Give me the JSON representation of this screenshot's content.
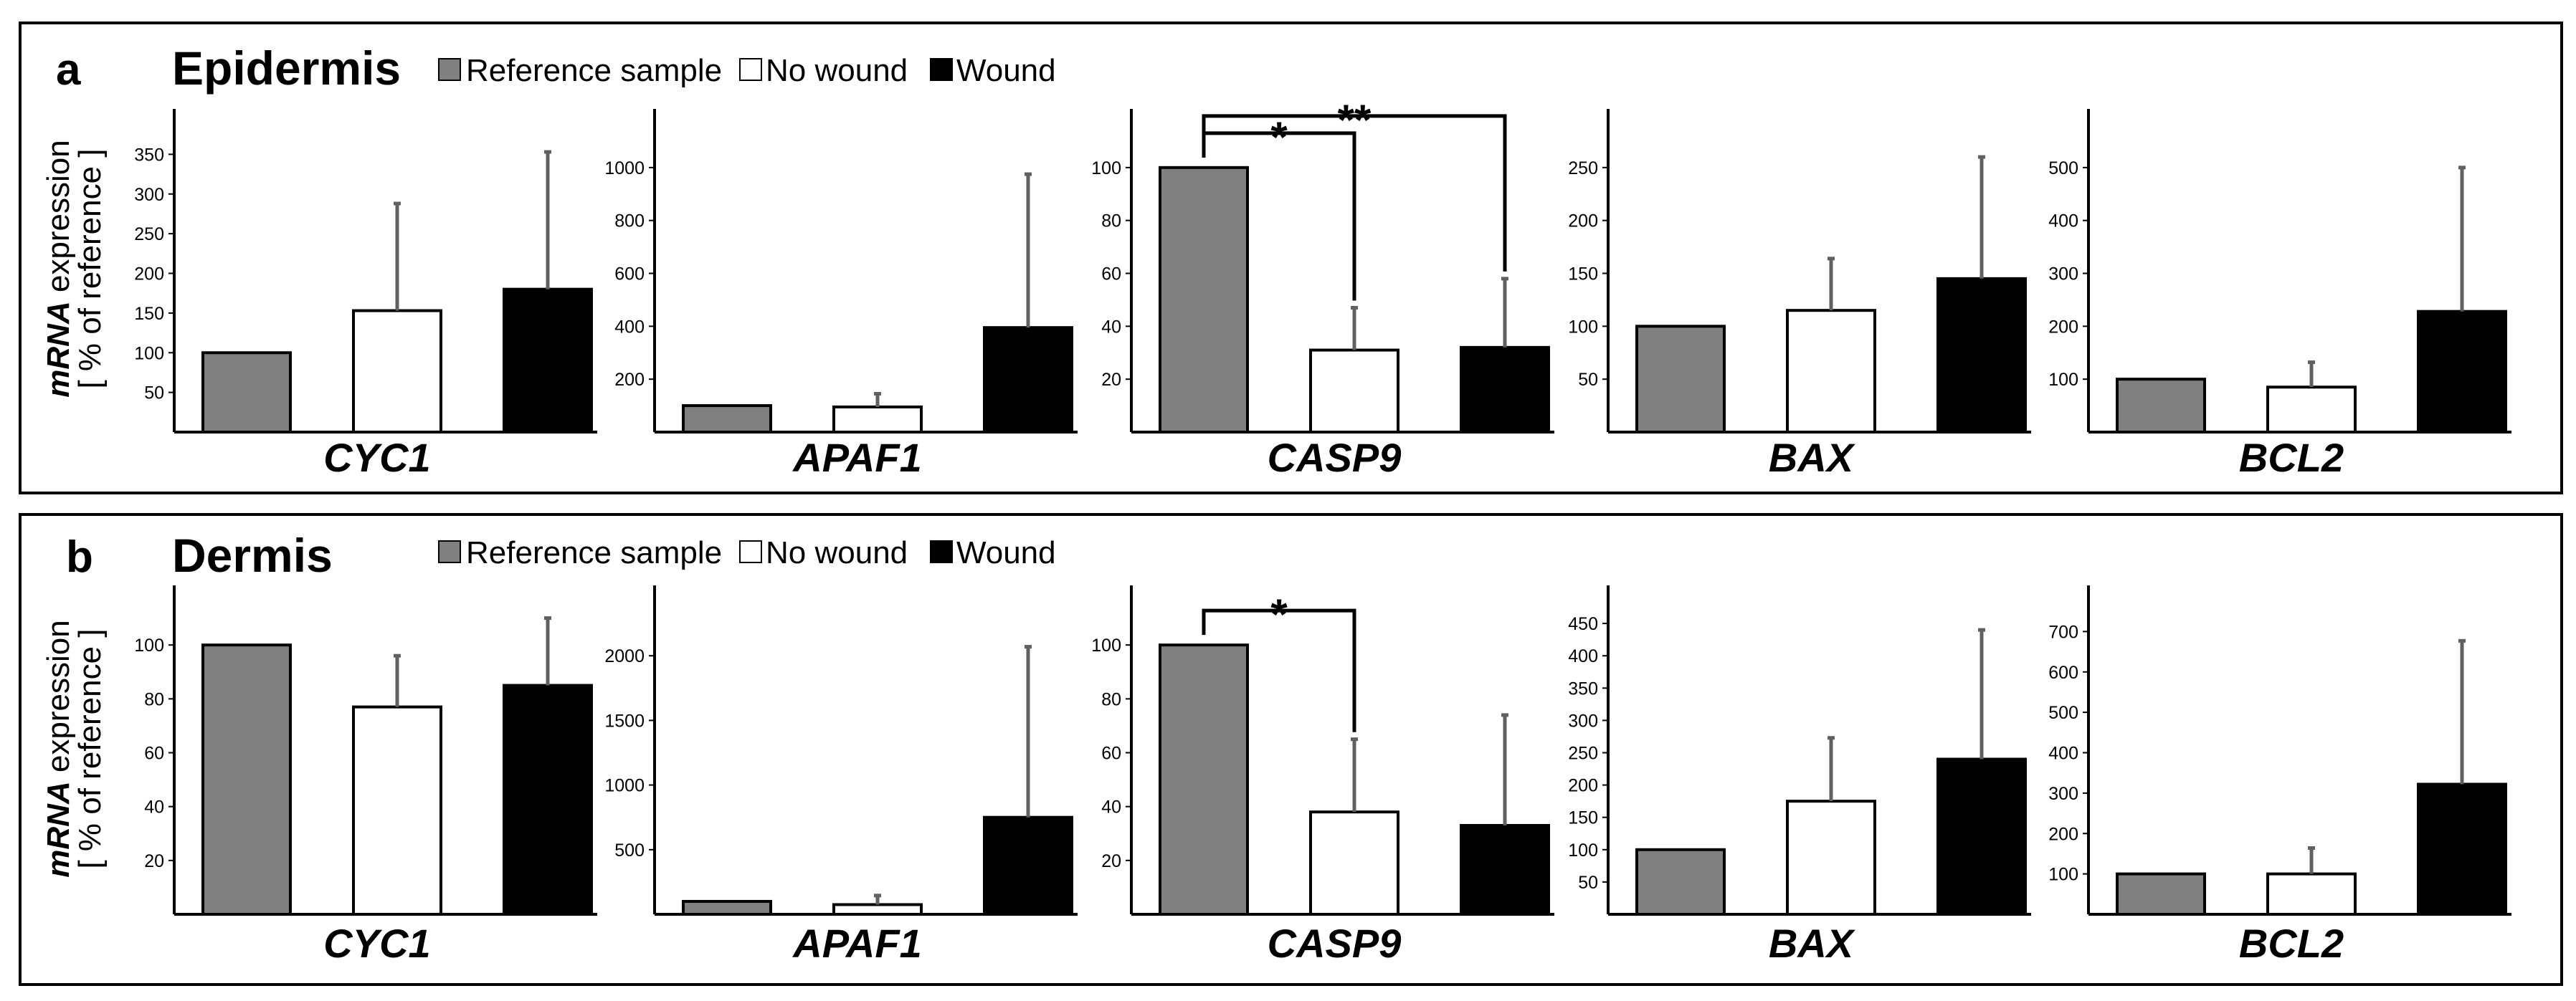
{
  "colors": {
    "reference": "#808080",
    "no_wound": "#ffffff",
    "wound": "#000000",
    "error_bar": "#606060"
  },
  "legend": [
    "Reference sample",
    "No wound",
    "Wound"
  ],
  "y_label": {
    "italic_part": "mRNA",
    "plain_part": " expression",
    "line2": "[ % of reference ]"
  },
  "chart_data": [
    {
      "panel_letter": "a",
      "panel_title": "Epidermis",
      "type": "bar",
      "series_names": [
        "Reference sample",
        "No wound",
        "Wound"
      ],
      "charts": [
        {
          "gene": "CYC1",
          "ylim": [
            0,
            400
          ],
          "yticks": [
            50,
            100,
            150,
            200,
            250,
            300,
            350
          ],
          "values": [
            100,
            153,
            180
          ],
          "errors": [
            0,
            135,
            173
          ],
          "sig": []
        },
        {
          "gene": "APAF1",
          "ylim": [
            0,
            1200
          ],
          "yticks": [
            200,
            400,
            600,
            800,
            1000
          ],
          "values": [
            100,
            95,
            395
          ],
          "errors": [
            0,
            50,
            580
          ],
          "sig": []
        },
        {
          "gene": "CASP9",
          "ylim": [
            0,
            120
          ],
          "yticks": [
            20,
            40,
            60,
            80,
            100
          ],
          "values": [
            100,
            31,
            32
          ],
          "errors": [
            0,
            16,
            26
          ],
          "sig": [
            {
              "from": 0,
              "to": 1,
              "label": "*",
              "level": 1
            },
            {
              "from": 0,
              "to": 2,
              "label": "**",
              "level": 2
            }
          ]
        },
        {
          "gene": "BAX",
          "ylim": [
            0,
            300
          ],
          "yticks": [
            50,
            100,
            150,
            200,
            250
          ],
          "values": [
            100,
            115,
            145
          ],
          "errors": [
            0,
            49,
            115
          ],
          "sig": []
        },
        {
          "gene": "BCL2",
          "ylim": [
            0,
            600
          ],
          "yticks": [
            100,
            200,
            300,
            400,
            500
          ],
          "values": [
            100,
            85,
            228
          ],
          "errors": [
            0,
            47,
            272
          ],
          "sig": []
        }
      ]
    },
    {
      "panel_letter": "b",
      "panel_title": "Dermis",
      "type": "bar",
      "series_names": [
        "Reference sample",
        "No wound",
        "Wound"
      ],
      "charts": [
        {
          "gene": "CYC1",
          "ylim": [
            0,
            120
          ],
          "yticks": [
            20,
            40,
            60,
            80,
            100
          ],
          "values": [
            100,
            77,
            85
          ],
          "errors": [
            0,
            19,
            25
          ],
          "sig": []
        },
        {
          "gene": "APAF1",
          "ylim": [
            0,
            2500
          ],
          "yticks": [
            500,
            1000,
            1500,
            2000
          ],
          "values": [
            100,
            75,
            750
          ],
          "errors": [
            0,
            70,
            1320
          ],
          "sig": []
        },
        {
          "gene": "CASP9",
          "ylim": [
            0,
            120
          ],
          "yticks": [
            20,
            40,
            60,
            80,
            100
          ],
          "values": [
            100,
            38,
            33
          ],
          "errors": [
            0,
            27,
            41
          ],
          "sig": [
            {
              "from": 0,
              "to": 1,
              "label": "*",
              "level": 1
            }
          ]
        },
        {
          "gene": "BAX",
          "ylim": [
            0,
            500
          ],
          "yticks": [
            50,
            100,
            150,
            200,
            250,
            300,
            350,
            400,
            450
          ],
          "values": [
            100,
            175,
            240
          ],
          "errors": [
            0,
            98,
            200
          ],
          "sig": []
        },
        {
          "gene": "BCL2",
          "ylim": [
            0,
            800
          ],
          "yticks": [
            100,
            200,
            300,
            400,
            500,
            600,
            700
          ],
          "values": [
            100,
            100,
            322
          ],
          "errors": [
            0,
            64,
            355
          ],
          "sig": []
        }
      ]
    }
  ]
}
